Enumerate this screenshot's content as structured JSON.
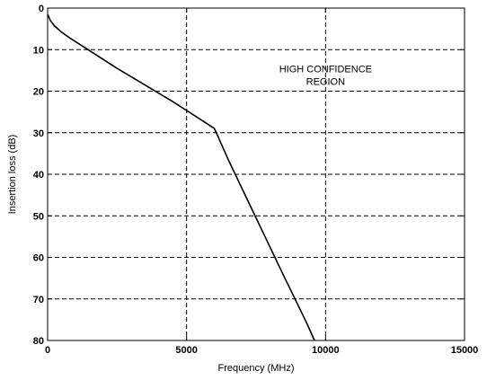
{
  "chart_data": {
    "type": "line",
    "title": "",
    "xlabel": "Frequency (MHz)",
    "ylabel": "Insertion loss (dB)",
    "xlim": [
      0,
      15000
    ],
    "ylim": [
      0,
      80
    ],
    "y_inverted": true,
    "grid": true,
    "x_ticks": [
      0,
      5000,
      10000,
      15000
    ],
    "y_ticks": [
      0,
      10,
      20,
      30,
      40,
      50,
      60,
      70,
      80
    ],
    "x_tick_labels": [
      "0",
      "5000",
      "10000",
      "15000"
    ],
    "y_tick_labels": [
      "0",
      "10",
      "20",
      "30",
      "40",
      "50",
      "60",
      "70",
      "80"
    ],
    "series": [
      {
        "x": [
          0,
          100,
          250,
          500,
          800,
          1500,
          2500,
          3500,
          4500,
          5500,
          6000,
          6500,
          7500,
          8500,
          9300,
          9600
        ],
        "y": [
          1.5,
          3.0,
          4.3,
          5.8,
          7.2,
          10.2,
          14.5,
          18.5,
          22.5,
          26.8,
          29.0,
          36.5,
          50.5,
          64.5,
          75.5,
          80
        ],
        "color": "#000000"
      }
    ],
    "annotations": [
      {
        "text_lines": [
          "HIGH CONFIDENCE",
          "REGION"
        ],
        "x": 10000,
        "y": 15.5
      }
    ]
  }
}
